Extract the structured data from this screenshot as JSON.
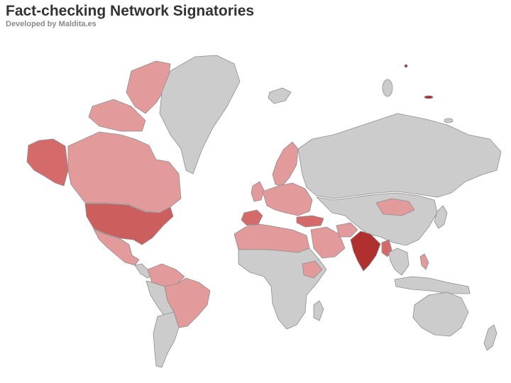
{
  "title": "Fact-checking Network Signatories",
  "subtitle": "Developed by Maldita.es",
  "colors": {
    "background": "#ffffff",
    "no_data": "#cccccc",
    "low": "#e39a9a",
    "medium": "#d46a6a",
    "high": "#cc5e5e",
    "highest": "#b03030",
    "border": "#8e8e8e"
  },
  "legend_note": "",
  "regions": [
    {
      "id": "alaska",
      "level": "medium"
    },
    {
      "id": "canada",
      "level": "low"
    },
    {
      "id": "united-states",
      "level": "high"
    },
    {
      "id": "mexico",
      "level": "low"
    },
    {
      "id": "greenland",
      "level": "none"
    },
    {
      "id": "south-america-west",
      "level": "none"
    },
    {
      "id": "brazil",
      "level": "low"
    },
    {
      "id": "colombia-venezuela",
      "level": "low"
    },
    {
      "id": "chile-argentina",
      "level": "none"
    },
    {
      "id": "scandinavia",
      "level": "low"
    },
    {
      "id": "europe",
      "level": "low"
    },
    {
      "id": "spain",
      "level": "medium"
    },
    {
      "id": "turkey",
      "level": "medium"
    },
    {
      "id": "north-africa",
      "level": "low"
    },
    {
      "id": "africa",
      "level": "none"
    },
    {
      "id": "ethiopia",
      "level": "low"
    },
    {
      "id": "russia",
      "level": "none"
    },
    {
      "id": "mongolia",
      "level": "low"
    },
    {
      "id": "china",
      "level": "none"
    },
    {
      "id": "india",
      "level": "highest"
    },
    {
      "id": "myanmar",
      "level": "medium"
    },
    {
      "id": "southeast-asia",
      "level": "none"
    },
    {
      "id": "philippines",
      "level": "low"
    },
    {
      "id": "indonesia",
      "level": "none"
    },
    {
      "id": "australia",
      "level": "none"
    },
    {
      "id": "new-zealand",
      "level": "none"
    },
    {
      "id": "arabia",
      "level": "low"
    },
    {
      "id": "afghanistan",
      "level": "low"
    },
    {
      "id": "japan",
      "level": "none"
    },
    {
      "id": "iceland",
      "level": "none"
    },
    {
      "id": "uk-ireland",
      "level": "low"
    },
    {
      "id": "svalbard-islands",
      "level": "highest"
    }
  ]
}
